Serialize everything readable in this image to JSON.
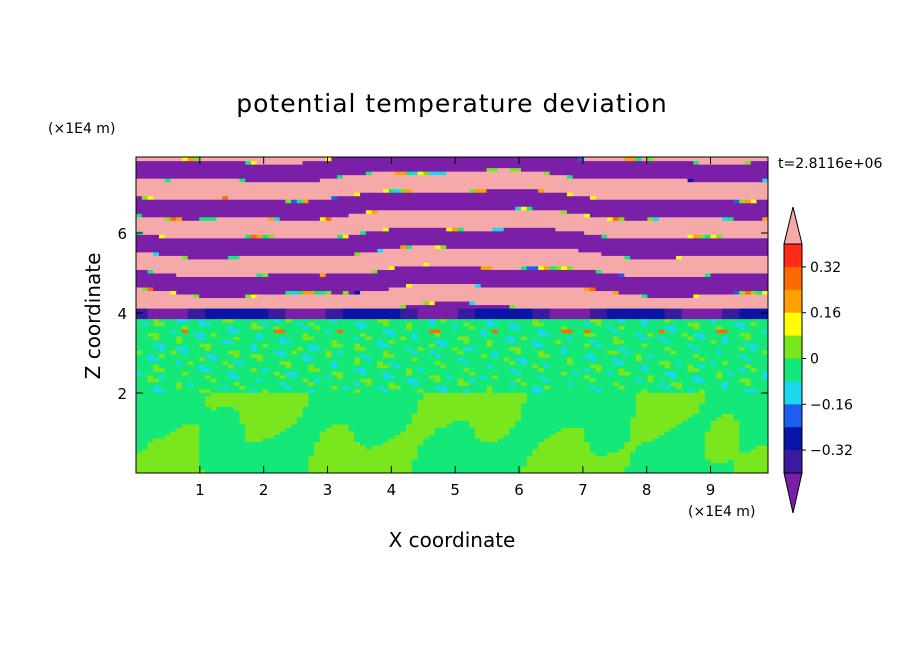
{
  "chart_data": {
    "type": "heatmap",
    "title": "potential temperature deviation",
    "xlabel": "X coordinate",
    "ylabel": "Z coordinate",
    "x_unit": "(×1E4 m)",
    "y_unit": "(×1E4 m)",
    "time_label": "t=2.8116e+06",
    "xlim": [
      0,
      9.9
    ],
    "ylim": [
      0,
      7.9
    ],
    "x_ticks": [
      1,
      2,
      3,
      4,
      5,
      6,
      7,
      8,
      9
    ],
    "y_ticks": [
      2,
      4,
      6
    ],
    "colorbar": {
      "levels": [
        -0.48,
        -0.4,
        -0.32,
        -0.24,
        -0.16,
        -0.08,
        0,
        0.08,
        0.16,
        0.24,
        0.32,
        0.4,
        0.48
      ],
      "tick_values": [
        0.32,
        0.16,
        0,
        -0.16,
        -0.32
      ],
      "tick_labels": [
        "0.32",
        "0.16",
        "0",
        "−0.16",
        "−0.32"
      ],
      "colors": [
        "#7a1fa8",
        "#3a1ba0",
        "#0a14a8",
        "#1e5ef0",
        "#19d8f0",
        "#14e878",
        "#7ae61e",
        "#ffff00",
        "#ffa000",
        "#ff6a00",
        "#ff2a18",
        "#f5a9a9"
      ],
      "extend": "both"
    },
    "regions": [
      {
        "z_range": [
          0,
          2.0
        ],
        "dominant": 0.04,
        "secondary": -0.04,
        "pattern": "convective plumes"
      },
      {
        "z_range": [
          2.0,
          3.9
        ],
        "dominant": -0.04,
        "secondary": 0.04,
        "pattern": "mixed turbulent layer"
      },
      {
        "z_range": [
          3.9,
          4.1
        ],
        "dominant": -0.36,
        "secondary": 0.36,
        "pattern": "inversion / sharp transition"
      },
      {
        "z_range": [
          4.1,
          7.9
        ],
        "dominant": 0.5,
        "secondary": -0.5,
        "pattern": "alternating horizontal bands"
      }
    ]
  }
}
